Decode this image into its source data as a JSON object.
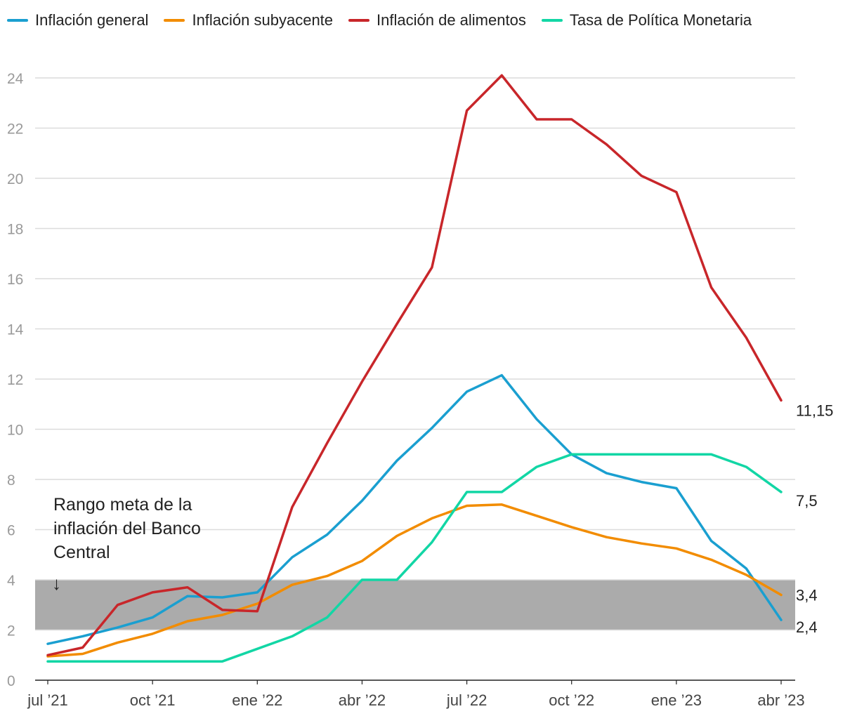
{
  "chart_data": {
    "type": "line",
    "x": [
      "2021-07",
      "2021-08",
      "2021-09",
      "2021-10",
      "2021-11",
      "2021-12",
      "2022-01",
      "2022-02",
      "2022-03",
      "2022-04",
      "2022-05",
      "2022-06",
      "2022-07",
      "2022-08",
      "2022-09",
      "2022-10",
      "2022-11",
      "2022-12",
      "2023-01",
      "2023-02",
      "2023-03",
      "2023-04"
    ],
    "xticks": [
      {
        "index": 0,
        "label": "jul ’21"
      },
      {
        "index": 3,
        "label": "oct ’21"
      },
      {
        "index": 6,
        "label": "ene ’22"
      },
      {
        "index": 9,
        "label": "abr ’22"
      },
      {
        "index": 12,
        "label": "jul ’22"
      },
      {
        "index": 15,
        "label": "oct ’22"
      },
      {
        "index": 18,
        "label": "ene ’23"
      },
      {
        "index": 21,
        "label": "abr ’23"
      }
    ],
    "yticks": [
      "0",
      "2",
      "4",
      "6",
      "8",
      "10",
      "12",
      "14",
      "16",
      "18",
      "20",
      "22",
      "24"
    ],
    "ylim": [
      0,
      24
    ],
    "series": [
      {
        "name": "Inflación general",
        "color": "#1a9fd0",
        "values": [
          1.45,
          1.75,
          2.1,
          2.5,
          3.35,
          3.3,
          3.5,
          4.9,
          5.8,
          7.15,
          8.75,
          10.05,
          11.5,
          12.15,
          10.4,
          9.0,
          8.25,
          7.9,
          7.65,
          5.55,
          4.45,
          2.4
        ],
        "end_label": "2,4"
      },
      {
        "name": "Inflación subyacente",
        "color": "#f28c00",
        "values": [
          0.95,
          1.05,
          1.5,
          1.85,
          2.35,
          2.6,
          3.05,
          3.8,
          4.15,
          4.75,
          5.75,
          6.45,
          6.95,
          7.0,
          6.55,
          6.1,
          5.7,
          5.45,
          5.25,
          4.8,
          4.2,
          3.4
        ],
        "end_label": "3,4"
      },
      {
        "name": "Inflación de alimentos",
        "color": "#c8262a",
        "values": [
          1.0,
          1.3,
          3.0,
          3.5,
          3.7,
          2.8,
          2.75,
          6.9,
          9.45,
          11.9,
          14.2,
          16.45,
          22.7,
          24.1,
          22.35,
          22.35,
          21.35,
          20.1,
          19.45,
          15.65,
          13.65,
          11.15
        ],
        "end_label": "11,15"
      },
      {
        "name": "Tasa de Política Monetaria",
        "color": "#12d6a5",
        "values": [
          0.75,
          0.75,
          0.75,
          0.75,
          0.75,
          0.75,
          1.25,
          1.75,
          2.5,
          4.0,
          4.0,
          5.5,
          7.5,
          7.5,
          8.5,
          9.0,
          9.0,
          9.0,
          9.0,
          9.0,
          8.5,
          7.5
        ],
        "end_label": "7,5"
      }
    ],
    "target_band": {
      "low": 2,
      "high": 4,
      "color": "#ababab"
    },
    "annotation": {
      "lines": [
        "Rango meta de la",
        "inflación del Banco",
        "Central"
      ],
      "arrow": "↓"
    },
    "grid": true,
    "legend_position": "top-left"
  }
}
